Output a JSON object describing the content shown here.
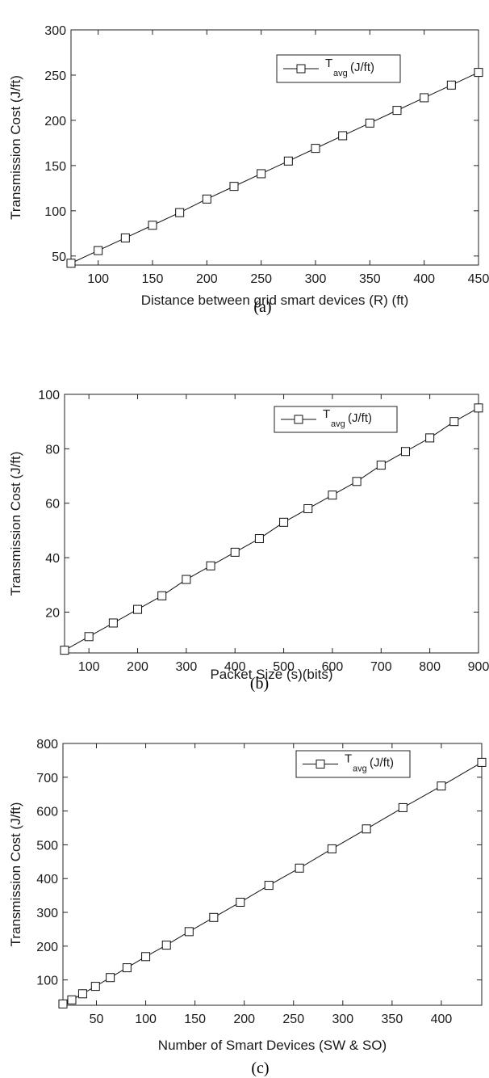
{
  "chart_data": [
    {
      "type": "line",
      "caption": "(a)",
      "xlabel": "Distance between grid smart devices (R) (ft)",
      "ylabel": "Transmission Cost (J/ft)",
      "xlim": [
        75,
        450
      ],
      "ylim": [
        40,
        300
      ],
      "xticks": [
        100,
        150,
        200,
        250,
        300,
        350,
        400,
        450
      ],
      "yticks": [
        50,
        100,
        150,
        200,
        250,
        300
      ],
      "grid": false,
      "legend_position": "top-right",
      "series": [
        {
          "name_main": "T",
          "name_sub": "avg",
          "name_unit": "(J/ft)",
          "marker": "square",
          "x": [
            75,
            100,
            125,
            150,
            175,
            200,
            225,
            250,
            275,
            300,
            325,
            350,
            375,
            400,
            425,
            450
          ],
          "y": [
            42,
            56,
            70,
            84,
            98,
            113,
            127,
            141,
            155,
            169,
            183,
            197,
            211,
            225,
            239,
            253
          ]
        }
      ]
    },
    {
      "type": "line",
      "caption": "(b)",
      "xlabel": "Packet Size (s)(bits)",
      "ylabel": "Transmission Cost (J/ft)",
      "xlim": [
        50,
        900
      ],
      "ylim": [
        5,
        100
      ],
      "xticks": [
        100,
        200,
        300,
        400,
        500,
        600,
        700,
        800,
        900
      ],
      "yticks": [
        20,
        40,
        60,
        80,
        100
      ],
      "grid": false,
      "legend_position": "top-right",
      "series": [
        {
          "name_main": "T",
          "name_sub": "avg",
          "name_unit": "(J/ft)",
          "marker": "square",
          "x": [
            50,
            100,
            150,
            200,
            250,
            300,
            350,
            400,
            450,
            500,
            550,
            600,
            650,
            700,
            750,
            800,
            850,
            900
          ],
          "y": [
            6,
            11,
            16,
            21,
            26,
            32,
            37,
            42,
            47,
            53,
            58,
            63,
            68,
            74,
            79,
            84,
            90,
            95
          ]
        }
      ]
    },
    {
      "type": "line",
      "caption": "(c)",
      "xlabel": "Number of Smart Devices (SW & SO)",
      "ylabel": "Transmission Cost (J/ft)",
      "xlim": [
        16,
        441
      ],
      "ylim": [
        25,
        800
      ],
      "xticks": [
        50,
        100,
        150,
        200,
        250,
        300,
        350,
        400
      ],
      "yticks": [
        100,
        200,
        300,
        400,
        500,
        600,
        700,
        800
      ],
      "grid": false,
      "legend_position": "top-right",
      "series": [
        {
          "name_main": "T",
          "name_sub": "avg",
          "name_unit": "(J/ft)",
          "marker": "square",
          "x": [
            16,
            25,
            36,
            49,
            64,
            81,
            100,
            121,
            144,
            169,
            196,
            225,
            256,
            289,
            324,
            361,
            400,
            441
          ],
          "y": [
            29,
            41,
            59,
            81,
            107,
            136,
            169,
            203,
            243,
            285,
            330,
            380,
            431,
            488,
            547,
            610,
            674,
            744
          ]
        }
      ]
    }
  ]
}
